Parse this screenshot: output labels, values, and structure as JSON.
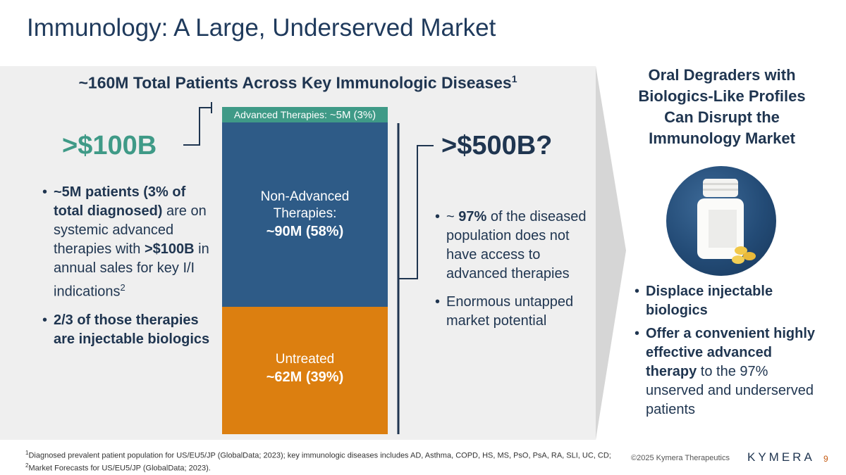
{
  "slide": {
    "title": "Immunology: A Large, Underserved Market",
    "page_number": "9",
    "copyright": "©2025 Kymera Therapeutics",
    "logo_text": "KYMERA"
  },
  "panel": {
    "title": "~160M Total Patients Across Key Immunologic Diseases",
    "title_sup": "1",
    "left_big": ">$100B",
    "right_big": ">$500B?"
  },
  "chart_data": {
    "type": "bar",
    "stacked": true,
    "title": "~160M Total Patients Across Key Immunologic Diseases",
    "total_patients_millions": 160,
    "unit": "M patients",
    "segments": [
      {
        "name": "Advanced Therapies:",
        "value_label": "~5M",
        "pct_label": "(3%)",
        "value": 5,
        "percent": 3,
        "color": "#3f9a87"
      },
      {
        "name": "Non-Advanced Therapies:",
        "name_line1": "Non-Advanced",
        "name_line2": "Therapies:",
        "value_label": "~90M (58%)",
        "value": 90,
        "percent": 58,
        "color": "#2e5b87"
      },
      {
        "name": "Untreated",
        "value_label": "~62M (39%)",
        "value": 62,
        "percent": 39,
        "color": "#dc7f10"
      }
    ]
  },
  "left_bullets": [
    {
      "bold": "~5M patients (3% of total diagnosed)",
      "text": " are on systemic advanced therapies with ",
      "bold2": ">$100B",
      "text2": " in annual sales for key I/I indications",
      "sup": "2"
    },
    {
      "bold": "2/3 of those therapies are injectable biologics"
    }
  ],
  "mid_bullets": [
    {
      "pre": "~ ",
      "bold": "97%",
      "text": " of the diseased population does not have access to advanced therapies"
    },
    {
      "text": "Enormous untapped market potential"
    }
  ],
  "right": {
    "title": "Oral Degraders with Biologics-Like Profiles Can Disrupt the Immunology Market",
    "bullets": [
      {
        "bold": "Displace injectable biologics"
      },
      {
        "bold": "Offer a convenient highly effective advanced therapy",
        "text": " to the 97% unserved and underserved patients"
      }
    ]
  },
  "footnotes": [
    {
      "sup": "1",
      "text": "Diagnosed prevalent patient population for US/EU5/JP (GlobalData; 2023); key immunologic diseases includes AD, Asthma, COPD, HS, MS, PsO, PsA, RA, SLI, UC, CD;"
    },
    {
      "sup": "2",
      "text": "Market Forecasts for US/EU5/JP (GlobalData; 2023)."
    }
  ]
}
